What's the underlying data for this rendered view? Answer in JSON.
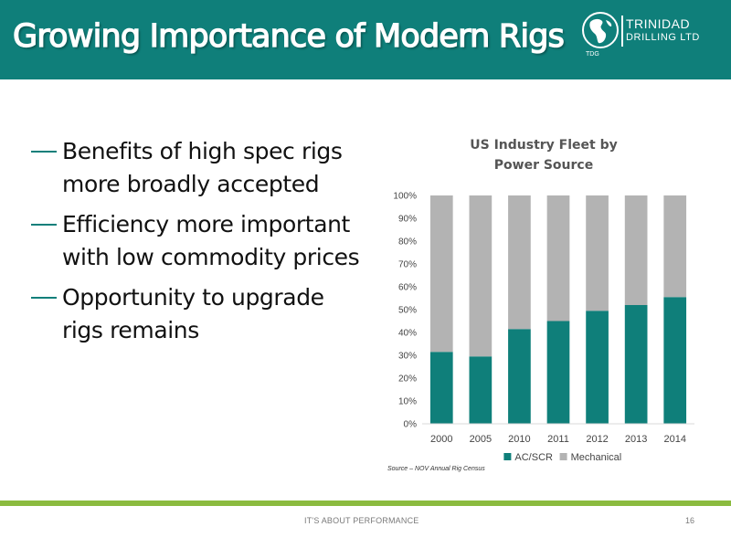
{
  "slide": {
    "title": "Growing Importance of Modern Rigs",
    "logo": {
      "line1": "TRINIDAD",
      "line2": "DRILLING LTD",
      "abbr": "TDG"
    },
    "bullets": [
      "Benefits of high spec rigs more broadly accepted",
      "Efficiency more important with low commodity prices",
      "Opportunity to upgrade rigs remains"
    ],
    "source": "Source – NOV Annual Rig Census",
    "footer": "IT'S ABOUT PERFORMANCE",
    "page_number": "16"
  },
  "colors": {
    "brand_teal": "#0f7f7a",
    "mechanical_gray": "#b3b3b3",
    "footer_green": "#8bbb3f"
  },
  "chart_data": {
    "type": "bar",
    "stacked": true,
    "title_lines": [
      "US Industry Fleet by",
      "Power Source"
    ],
    "categories": [
      "2000",
      "2005",
      "2010",
      "2011",
      "2012",
      "2013",
      "2014"
    ],
    "series": [
      {
        "name": "AC/SCR",
        "values": [
          31.5,
          29.5,
          41.5,
          45,
          49.5,
          52,
          55.5
        ],
        "color": "#0f7f7a"
      },
      {
        "name": "Mechanical",
        "values": [
          68.5,
          70.5,
          58.5,
          55,
          50.5,
          48,
          44.5
        ],
        "color": "#b3b3b3"
      }
    ],
    "ylim": [
      0,
      100
    ],
    "y_ticks": [
      "0%",
      "10%",
      "20%",
      "30%",
      "40%",
      "50%",
      "60%",
      "70%",
      "80%",
      "90%",
      "100%"
    ],
    "legend_position": "bottom",
    "grid": false
  }
}
